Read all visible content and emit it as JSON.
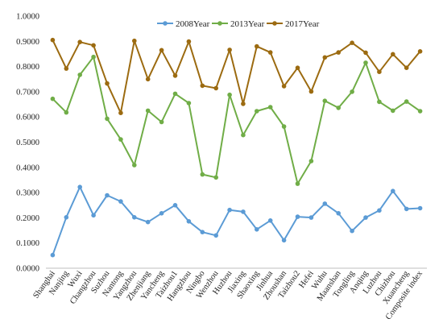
{
  "chart_data": {
    "type": "line",
    "title": "",
    "xlabel": "",
    "ylabel": "",
    "ylim": [
      0,
      1
    ],
    "ytick_step": 0.1,
    "ytick_decimals": 4,
    "grid": false,
    "legend_position": "top",
    "categories": [
      "Shanghai",
      "Nanjing",
      "Wuxi",
      "Changzhou",
      "Suzhou",
      "Nantong",
      "Yangzhou",
      "Zhenjiang",
      "Yancheng",
      "Taizhou1",
      "Hangzhou",
      "Ningbo",
      "Wenzhou",
      "Huzhou",
      "Jiaxing",
      "Shaoxing",
      "Jinhua",
      "Zhoushan",
      "Taizhou2",
      "Hefei",
      "Wuhu",
      "Maanshan",
      "Tongling",
      "Anqing",
      "Luzhou",
      "Chizhou",
      "Xuancheng",
      "Composite index"
    ],
    "series": [
      {
        "name": "2008Year",
        "color": "#5b9bd5",
        "values": [
          0.052,
          0.202,
          0.322,
          0.21,
          0.289,
          0.265,
          0.202,
          0.183,
          0.218,
          0.25,
          0.186,
          0.143,
          0.13,
          0.231,
          0.224,
          0.154,
          0.189,
          0.111,
          0.204,
          0.201,
          0.256,
          0.218,
          0.148,
          0.201,
          0.229,
          0.306,
          0.235,
          0.238
        ]
      },
      {
        "name": "2013Year",
        "color": "#70ad47",
        "values": [
          0.672,
          0.618,
          0.767,
          0.838,
          0.593,
          0.511,
          0.409,
          0.625,
          0.58,
          0.692,
          0.655,
          0.372,
          0.36,
          0.688,
          0.528,
          0.623,
          0.639,
          0.562,
          0.335,
          0.425,
          0.664,
          0.636,
          0.7,
          0.815,
          0.66,
          0.625,
          0.661,
          0.623
        ]
      },
      {
        "name": "2017Year",
        "color": "#9c6b11",
        "values": [
          0.905,
          0.792,
          0.897,
          0.884,
          0.733,
          0.616,
          0.902,
          0.75,
          0.865,
          0.764,
          0.899,
          0.724,
          0.714,
          0.866,
          0.652,
          0.88,
          0.856,
          0.722,
          0.795,
          0.701,
          0.836,
          0.856,
          0.894,
          0.855,
          0.779,
          0.849,
          0.795,
          0.86
        ]
      }
    ]
  }
}
